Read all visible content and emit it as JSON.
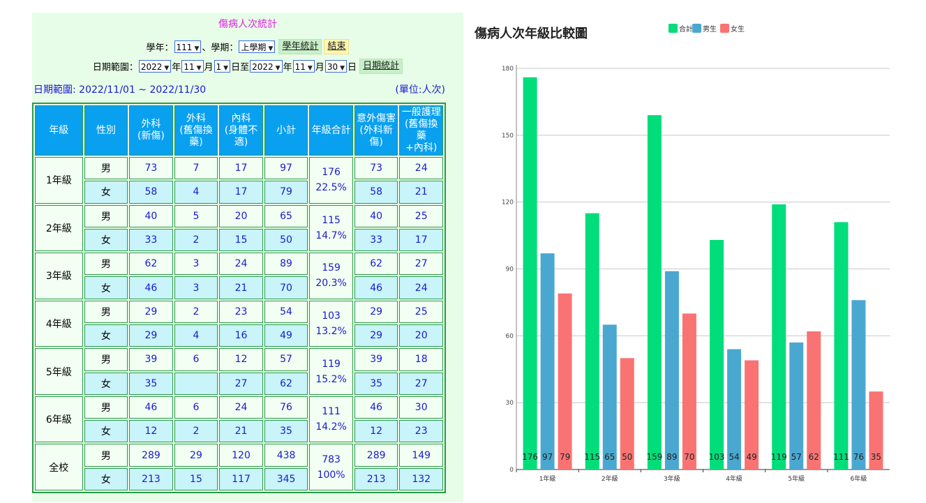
{
  "form": {
    "title": "傷病人次統計",
    "school_year_label": "學年：",
    "school_year_value": "111",
    "semester_label": "、學期：",
    "semester_value": "上學期",
    "btn_year_stats": "學年統計",
    "btn_end": "結束",
    "date_range_label": "日期範圍：",
    "from_year": "2022",
    "year_unit": "年",
    "from_month": "11",
    "month_unit": "月",
    "from_day": "1",
    "day_to": "日至",
    "to_year": "2022",
    "to_month": "11",
    "to_day": "30",
    "day_unit": "日",
    "btn_date_stats": "日期統計"
  },
  "summary": {
    "range_text": "日期範圍: 2022/11/01 ~ 2022/11/30",
    "unit_text": "(單位:人次)"
  },
  "table": {
    "headers": [
      "年級",
      "性別",
      "外科\n(新傷)",
      "外科\n(舊傷換藥)",
      "內科\n(身體不適)",
      "小計",
      "年級合計",
      "意外傷害\n(外科新傷)",
      "一般護理\n(舊傷換藥\n+內科)"
    ],
    "groups": [
      {
        "grade": "1年級",
        "total": "176",
        "pct": "22.5%",
        "rows": [
          {
            "sex": "男",
            "vals": [
              "73",
              "7",
              "17",
              "97"
            ],
            "acc": "73",
            "care": "24"
          },
          {
            "sex": "女",
            "vals": [
              "58",
              "4",
              "17",
              "79"
            ],
            "acc": "58",
            "care": "21"
          }
        ]
      },
      {
        "grade": "2年級",
        "total": "115",
        "pct": "14.7%",
        "rows": [
          {
            "sex": "男",
            "vals": [
              "40",
              "5",
              "20",
              "65"
            ],
            "acc": "40",
            "care": "25"
          },
          {
            "sex": "女",
            "vals": [
              "33",
              "2",
              "15",
              "50"
            ],
            "acc": "33",
            "care": "17"
          }
        ]
      },
      {
        "grade": "3年級",
        "total": "159",
        "pct": "20.3%",
        "rows": [
          {
            "sex": "男",
            "vals": [
              "62",
              "3",
              "24",
              "89"
            ],
            "acc": "62",
            "care": "27"
          },
          {
            "sex": "女",
            "vals": [
              "46",
              "3",
              "21",
              "70"
            ],
            "acc": "46",
            "care": "24"
          }
        ]
      },
      {
        "grade": "4年級",
        "total": "103",
        "pct": "13.2%",
        "rows": [
          {
            "sex": "男",
            "vals": [
              "29",
              "2",
              "23",
              "54"
            ],
            "acc": "29",
            "care": "25"
          },
          {
            "sex": "女",
            "vals": [
              "29",
              "4",
              "16",
              "49"
            ],
            "acc": "29",
            "care": "20"
          }
        ]
      },
      {
        "grade": "5年級",
        "total": "119",
        "pct": "15.2%",
        "rows": [
          {
            "sex": "男",
            "vals": [
              "39",
              "6",
              "12",
              "57"
            ],
            "acc": "39",
            "care": "18"
          },
          {
            "sex": "女",
            "vals": [
              "35",
              "",
              "27",
              "62"
            ],
            "acc": "35",
            "care": "27"
          }
        ]
      },
      {
        "grade": "6年級",
        "total": "111",
        "pct": "14.2%",
        "rows": [
          {
            "sex": "男",
            "vals": [
              "46",
              "6",
              "24",
              "76"
            ],
            "acc": "46",
            "care": "30"
          },
          {
            "sex": "女",
            "vals": [
              "12",
              "2",
              "21",
              "35"
            ],
            "acc": "12",
            "care": "23"
          }
        ]
      },
      {
        "grade": "全校",
        "total": "783",
        "pct": "100%",
        "rows": [
          {
            "sex": "男",
            "vals": [
              "289",
              "29",
              "120",
              "438"
            ],
            "acc": "289",
            "care": "149"
          },
          {
            "sex": "女",
            "vals": [
              "213",
              "15",
              "117",
              "345"
            ],
            "acc": "213",
            "care": "132"
          }
        ]
      }
    ]
  },
  "colors": {
    "total": "#00dd7a",
    "male": "#4aa8d0",
    "female": "#fa7373"
  },
  "chart_data": {
    "type": "bar",
    "title": "傷病人次年級比較圖",
    "categories": [
      "1年級",
      "2年級",
      "3年級",
      "4年級",
      "5年級",
      "6年級"
    ],
    "series": [
      {
        "name": "合計",
        "values": [
          176,
          115,
          159,
          103,
          119,
          111
        ]
      },
      {
        "name": "男生",
        "values": [
          97,
          65,
          89,
          54,
          57,
          76
        ]
      },
      {
        "name": "女生",
        "values": [
          79,
          50,
          70,
          49,
          62,
          35
        ]
      }
    ],
    "ylim": [
      0,
      180
    ],
    "yticks": [
      0,
      30,
      60,
      90,
      120,
      150,
      180
    ],
    "grid": true,
    "legend": "top"
  }
}
